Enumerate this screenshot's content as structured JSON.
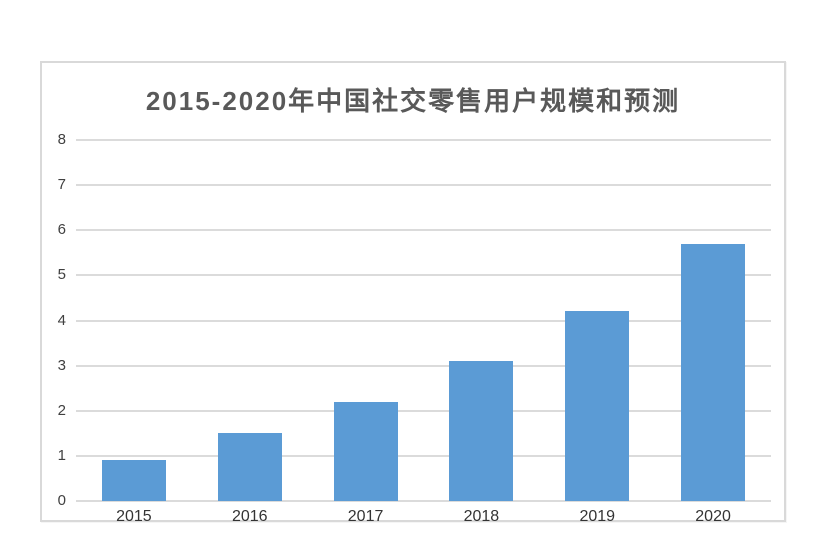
{
  "page": {
    "background_color": "#ffffff",
    "card_border_color": "#d9d9d9"
  },
  "chart_data": {
    "type": "bar",
    "title": "2015-2020年中国社交零售用户规模和预测",
    "categories": [
      "2015",
      "2016",
      "2017",
      "2018",
      "2019",
      "2020"
    ],
    "values": [
      0.9,
      1.5,
      2.2,
      3.1,
      4.2,
      5.7
    ],
    "xlabel": "",
    "ylabel": "",
    "ylim": [
      0,
      8
    ],
    "yticks": [
      0,
      1,
      2,
      3,
      4,
      5,
      6,
      7,
      8
    ],
    "grid": true,
    "legend": "none",
    "bar_color": "#5B9BD5",
    "gridline_color": "#DBDBDB",
    "title_color": "#595959",
    "ytick_color": "#404040",
    "xtick_color": "#333333"
  }
}
